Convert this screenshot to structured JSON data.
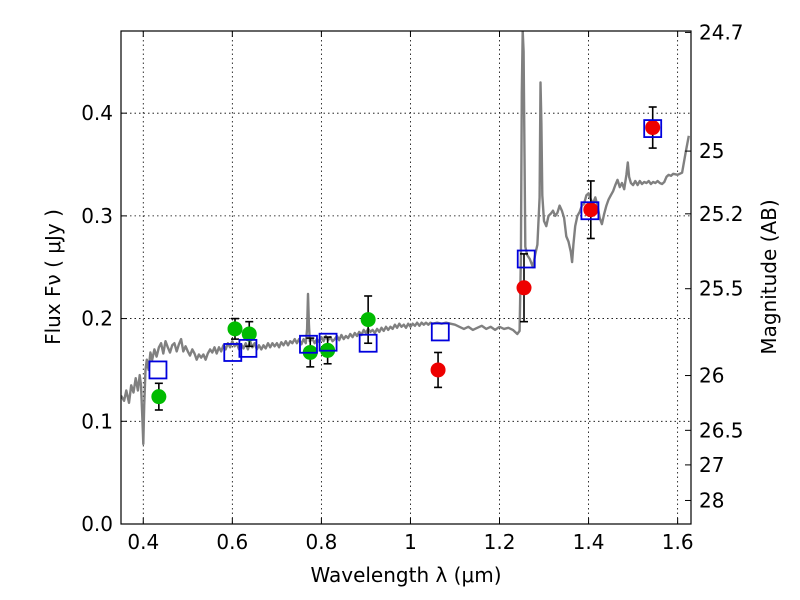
{
  "chart_data": {
    "type": "scatter",
    "xlabel": "Wavelength  λ (μm)",
    "ylabel": "Flux  Fν  ( μJy )",
    "ylabel_right": "Magnitude (AB)",
    "xlim": [
      0.35,
      1.63
    ],
    "ylim": [
      0.0,
      0.48
    ],
    "grid": true,
    "x_ticks": [
      {
        "value": 0.4,
        "label": "0.4"
      },
      {
        "value": 0.6,
        "label": "0.6"
      },
      {
        "value": 0.8,
        "label": "0.8"
      },
      {
        "value": 1.0,
        "label": "1"
      },
      {
        "value": 1.2,
        "label": "1.2"
      },
      {
        "value": 1.4,
        "label": "1.4"
      },
      {
        "value": 1.6,
        "label": "1.6"
      }
    ],
    "y_ticks": [
      {
        "value": 0.0,
        "label": "0.0"
      },
      {
        "value": 0.1,
        "label": "0.1"
      },
      {
        "value": 0.2,
        "label": "0.2"
      },
      {
        "value": 0.3,
        "label": "0.3"
      },
      {
        "value": 0.4,
        "label": "0.4"
      }
    ],
    "right_ticks": [
      {
        "mag": 24.7,
        "label": "24.7"
      },
      {
        "mag": 25.0,
        "label": "25"
      },
      {
        "mag": 25.2,
        "label": "25.2"
      },
      {
        "mag": 25.5,
        "label": "25.5"
      },
      {
        "mag": 26.0,
        "label": "26"
      },
      {
        "mag": 26.5,
        "label": "26.5"
      },
      {
        "mag": 27.0,
        "label": "27"
      },
      {
        "mag": 28.0,
        "label": "28"
      }
    ],
    "series": [
      {
        "kind": "line",
        "color": "#808080",
        "points": [
          [
            0.35,
            0.125
          ],
          [
            0.357,
            0.12
          ],
          [
            0.362,
            0.13
          ],
          [
            0.368,
            0.118
          ],
          [
            0.373,
            0.135
          ],
          [
            0.378,
            0.128
          ],
          [
            0.383,
            0.142
          ],
          [
            0.388,
            0.13
          ],
          [
            0.392,
            0.145
          ],
          [
            0.395,
            0.135
          ],
          [
            0.398,
            0.102
          ],
          [
            0.4,
            0.078
          ],
          [
            0.402,
            0.115
          ],
          [
            0.405,
            0.15
          ],
          [
            0.408,
            0.16
          ],
          [
            0.412,
            0.15
          ],
          [
            0.416,
            0.167
          ],
          [
            0.42,
            0.16
          ],
          [
            0.425,
            0.17
          ],
          [
            0.43,
            0.163
          ],
          [
            0.435,
            0.172
          ],
          [
            0.44,
            0.176
          ],
          [
            0.445,
            0.166
          ],
          [
            0.45,
            0.178
          ],
          [
            0.455,
            0.172
          ],
          [
            0.46,
            0.167
          ],
          [
            0.465,
            0.174
          ],
          [
            0.47,
            0.176
          ],
          [
            0.475,
            0.168
          ],
          [
            0.48,
            0.175
          ],
          [
            0.485,
            0.18
          ],
          [
            0.49,
            0.168
          ],
          [
            0.495,
            0.173
          ],
          [
            0.5,
            0.168
          ],
          [
            0.505,
            0.164
          ],
          [
            0.51,
            0.17
          ],
          [
            0.515,
            0.166
          ],
          [
            0.52,
            0.16
          ],
          [
            0.525,
            0.165
          ],
          [
            0.53,
            0.162
          ],
          [
            0.535,
            0.165
          ],
          [
            0.54,
            0.16
          ],
          [
            0.545,
            0.166
          ],
          [
            0.55,
            0.17
          ],
          [
            0.555,
            0.167
          ],
          [
            0.56,
            0.172
          ],
          [
            0.565,
            0.166
          ],
          [
            0.57,
            0.172
          ],
          [
            0.575,
            0.168
          ],
          [
            0.58,
            0.174
          ],
          [
            0.585,
            0.17
          ],
          [
            0.59,
            0.176
          ],
          [
            0.595,
            0.172
          ],
          [
            0.6,
            0.178
          ],
          [
            0.605,
            0.173
          ],
          [
            0.61,
            0.176
          ],
          [
            0.615,
            0.17
          ],
          [
            0.62,
            0.175
          ],
          [
            0.625,
            0.171
          ],
          [
            0.63,
            0.176
          ],
          [
            0.635,
            0.17
          ],
          [
            0.64,
            0.178
          ],
          [
            0.645,
            0.172
          ],
          [
            0.65,
            0.176
          ],
          [
            0.655,
            0.17
          ],
          [
            0.66,
            0.174
          ],
          [
            0.665,
            0.17
          ],
          [
            0.67,
            0.174
          ],
          [
            0.675,
            0.171
          ],
          [
            0.68,
            0.176
          ],
          [
            0.685,
            0.172
          ],
          [
            0.69,
            0.176
          ],
          [
            0.695,
            0.173
          ],
          [
            0.7,
            0.176
          ],
          [
            0.705,
            0.172
          ],
          [
            0.71,
            0.177
          ],
          [
            0.715,
            0.174
          ],
          [
            0.72,
            0.178
          ],
          [
            0.725,
            0.174
          ],
          [
            0.73,
            0.178
          ],
          [
            0.735,
            0.176
          ],
          [
            0.74,
            0.18
          ],
          [
            0.745,
            0.176
          ],
          [
            0.75,
            0.18
          ],
          [
            0.755,
            0.175
          ],
          [
            0.76,
            0.18
          ],
          [
            0.765,
            0.176
          ],
          [
            0.768,
            0.19
          ],
          [
            0.77,
            0.224
          ],
          [
            0.772,
            0.195
          ],
          [
            0.774,
            0.178
          ],
          [
            0.78,
            0.18
          ],
          [
            0.785,
            0.176
          ],
          [
            0.79,
            0.18
          ],
          [
            0.795,
            0.177
          ],
          [
            0.8,
            0.182
          ],
          [
            0.805,
            0.178
          ],
          [
            0.81,
            0.183
          ],
          [
            0.815,
            0.179
          ],
          [
            0.82,
            0.182
          ],
          [
            0.825,
            0.178
          ],
          [
            0.83,
            0.18
          ],
          [
            0.835,
            0.183
          ],
          [
            0.84,
            0.179
          ],
          [
            0.845,
            0.184
          ],
          [
            0.85,
            0.18
          ],
          [
            0.855,
            0.183
          ],
          [
            0.86,
            0.181
          ],
          [
            0.865,
            0.185
          ],
          [
            0.87,
            0.182
          ],
          [
            0.875,
            0.186
          ],
          [
            0.88,
            0.183
          ],
          [
            0.885,
            0.187
          ],
          [
            0.89,
            0.184
          ],
          [
            0.895,
            0.189
          ],
          [
            0.9,
            0.186
          ],
          [
            0.905,
            0.19
          ],
          [
            0.91,
            0.187
          ],
          [
            0.915,
            0.189
          ],
          [
            0.92,
            0.186
          ],
          [
            0.925,
            0.19
          ],
          [
            0.93,
            0.187
          ],
          [
            0.935,
            0.191
          ],
          [
            0.94,
            0.188
          ],
          [
            0.945,
            0.192
          ],
          [
            0.95,
            0.189
          ],
          [
            0.955,
            0.192
          ],
          [
            0.96,
            0.19
          ],
          [
            0.965,
            0.194
          ],
          [
            0.97,
            0.191
          ],
          [
            0.975,
            0.195
          ],
          [
            0.98,
            0.192
          ],
          [
            0.985,
            0.194
          ],
          [
            0.99,
            0.191
          ],
          [
            0.995,
            0.195
          ],
          [
            1.0,
            0.192
          ],
          [
            1.005,
            0.195
          ],
          [
            1.01,
            0.193
          ],
          [
            1.015,
            0.196
          ],
          [
            1.02,
            0.193
          ],
          [
            1.025,
            0.196
          ],
          [
            1.03,
            0.194
          ],
          [
            1.035,
            0.196
          ],
          [
            1.04,
            0.194
          ],
          [
            1.045,
            0.196
          ],
          [
            1.05,
            0.195
          ],
          [
            1.06,
            0.196
          ],
          [
            1.07,
            0.195
          ],
          [
            1.08,
            0.196
          ],
          [
            1.09,
            0.195
          ],
          [
            1.1,
            0.194
          ],
          [
            1.11,
            0.192
          ],
          [
            1.12,
            0.19
          ],
          [
            1.13,
            0.192
          ],
          [
            1.14,
            0.189
          ],
          [
            1.15,
            0.191
          ],
          [
            1.16,
            0.193
          ],
          [
            1.17,
            0.19
          ],
          [
            1.18,
            0.192
          ],
          [
            1.19,
            0.189
          ],
          [
            1.2,
            0.192
          ],
          [
            1.21,
            0.19
          ],
          [
            1.22,
            0.191
          ],
          [
            1.23,
            0.189
          ],
          [
            1.24,
            0.185
          ],
          [
            1.245,
            0.188
          ],
          [
            1.248,
            0.26
          ],
          [
            1.25,
            0.42
          ],
          [
            1.252,
            0.48
          ],
          [
            1.254,
            0.46
          ],
          [
            1.256,
            0.36
          ],
          [
            1.258,
            0.27
          ],
          [
            1.262,
            0.262
          ],
          [
            1.268,
            0.258
          ],
          [
            1.275,
            0.25
          ],
          [
            1.28,
            0.262
          ],
          [
            1.285,
            0.272
          ],
          [
            1.29,
            0.318
          ],
          [
            1.292,
            0.43
          ],
          [
            1.294,
            0.39
          ],
          [
            1.296,
            0.32
          ],
          [
            1.3,
            0.295
          ],
          [
            1.305,
            0.29
          ],
          [
            1.31,
            0.3
          ],
          [
            1.315,
            0.302
          ],
          [
            1.32,
            0.305
          ],
          [
            1.325,
            0.3
          ],
          [
            1.33,
            0.303
          ],
          [
            1.335,
            0.31
          ],
          [
            1.34,
            0.305
          ],
          [
            1.345,
            0.298
          ],
          [
            1.35,
            0.28
          ],
          [
            1.355,
            0.275
          ],
          [
            1.36,
            0.265
          ],
          [
            1.363,
            0.255
          ],
          [
            1.366,
            0.272
          ],
          [
            1.37,
            0.29
          ],
          [
            1.375,
            0.3
          ],
          [
            1.38,
            0.304
          ],
          [
            1.385,
            0.31
          ],
          [
            1.39,
            0.312
          ],
          [
            1.395,
            0.32
          ],
          [
            1.4,
            0.322
          ],
          [
            1.405,
            0.316
          ],
          [
            1.41,
            0.312
          ],
          [
            1.415,
            0.318
          ],
          [
            1.42,
            0.31
          ],
          [
            1.425,
            0.298
          ],
          [
            1.43,
            0.292
          ],
          [
            1.435,
            0.302
          ],
          [
            1.44,
            0.31
          ],
          [
            1.445,
            0.316
          ],
          [
            1.45,
            0.32
          ],
          [
            1.455,
            0.324
          ],
          [
            1.46,
            0.33
          ],
          [
            1.465,
            0.335
          ],
          [
            1.47,
            0.328
          ],
          [
            1.475,
            0.332
          ],
          [
            1.48,
            0.326
          ],
          [
            1.485,
            0.34
          ],
          [
            1.488,
            0.352
          ],
          [
            1.491,
            0.338
          ],
          [
            1.495,
            0.332
          ],
          [
            1.5,
            0.33
          ],
          [
            1.505,
            0.334
          ],
          [
            1.51,
            0.33
          ],
          [
            1.515,
            0.334
          ],
          [
            1.52,
            0.331
          ],
          [
            1.525,
            0.333
          ],
          [
            1.53,
            0.332
          ],
          [
            1.535,
            0.334
          ],
          [
            1.54,
            0.331
          ],
          [
            1.545,
            0.333
          ],
          [
            1.55,
            0.332
          ],
          [
            1.555,
            0.334
          ],
          [
            1.56,
            0.332
          ],
          [
            1.565,
            0.331
          ],
          [
            1.57,
            0.333
          ],
          [
            1.575,
            0.338
          ],
          [
            1.58,
            0.34
          ],
          [
            1.585,
            0.339
          ],
          [
            1.59,
            0.341
          ],
          [
            1.6,
            0.34
          ],
          [
            1.61,
            0.342
          ],
          [
            1.618,
            0.362
          ],
          [
            1.625,
            0.378
          ]
        ]
      },
      {
        "kind": "markers",
        "marker": "circle",
        "color": "#00bb00",
        "points": [
          {
            "x": 0.435,
            "y": 0.124,
            "err": 0.013
          },
          {
            "x": 0.606,
            "y": 0.19,
            "err": 0.01
          },
          {
            "x": 0.638,
            "y": 0.185,
            "err": 0.012
          },
          {
            "x": 0.775,
            "y": 0.167,
            "err": 0.014
          },
          {
            "x": 0.814,
            "y": 0.169,
            "err": 0.013
          },
          {
            "x": 0.905,
            "y": 0.199,
            "err": 0.023
          }
        ]
      },
      {
        "kind": "markers",
        "marker": "circle",
        "color": "#ee0000",
        "points": [
          {
            "x": 1.062,
            "y": 0.15,
            "err": 0.017
          },
          {
            "x": 1.255,
            "y": 0.23,
            "err": 0.033
          },
          {
            "x": 1.405,
            "y": 0.306,
            "err": 0.028
          },
          {
            "x": 1.544,
            "y": 0.386,
            "err": 0.02
          }
        ]
      },
      {
        "kind": "markers",
        "marker": "square",
        "color": "#0000dd",
        "points": [
          {
            "x": 0.433,
            "y": 0.15
          },
          {
            "x": 0.601,
            "y": 0.167
          },
          {
            "x": 0.635,
            "y": 0.171
          },
          {
            "x": 0.771,
            "y": 0.175
          },
          {
            "x": 0.815,
            "y": 0.177
          },
          {
            "x": 0.905,
            "y": 0.176
          },
          {
            "x": 1.067,
            "y": 0.187
          },
          {
            "x": 1.26,
            "y": 0.258
          },
          {
            "x": 1.403,
            "y": 0.305
          },
          {
            "x": 1.544,
            "y": 0.385
          }
        ]
      }
    ]
  }
}
